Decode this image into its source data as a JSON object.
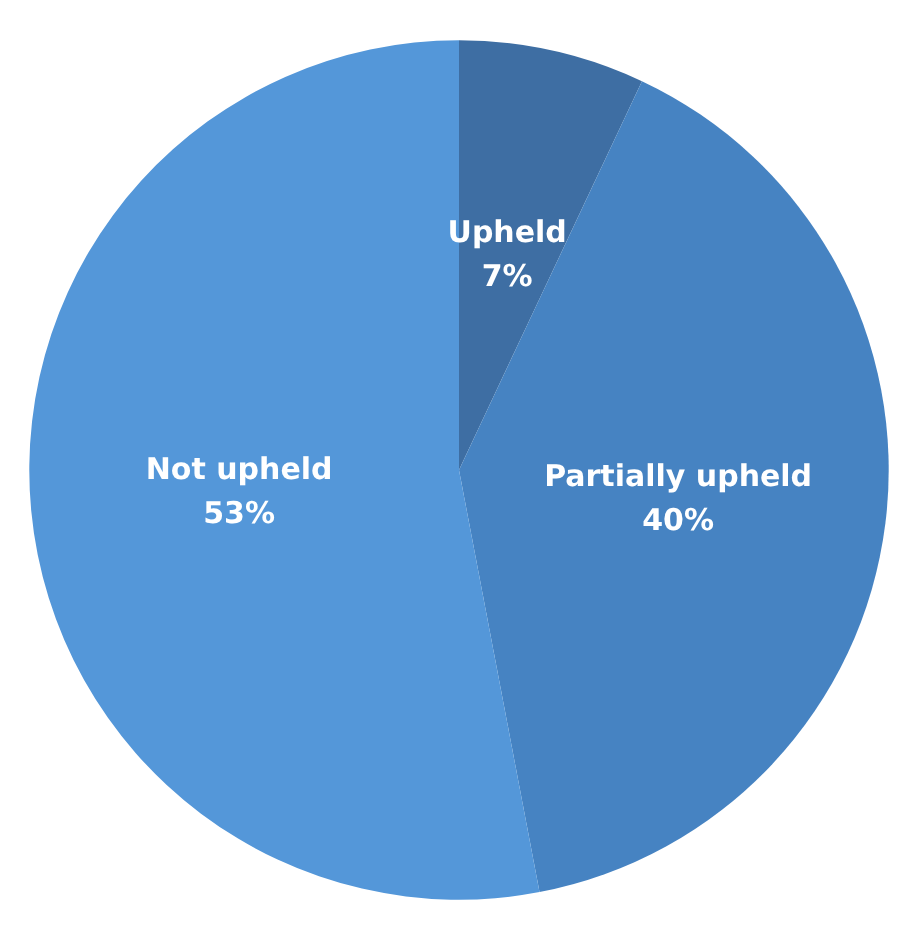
{
  "chart_data": {
    "type": "pie",
    "categories": [
      "Upheld",
      "Partially upheld",
      "Not upheld"
    ],
    "values": [
      7,
      40,
      53
    ],
    "value_labels": [
      "7%",
      "40%",
      "53%"
    ],
    "colors": [
      "#3e6ea3",
      "#4683c2",
      "#5497d9"
    ],
    "legend": false
  }
}
